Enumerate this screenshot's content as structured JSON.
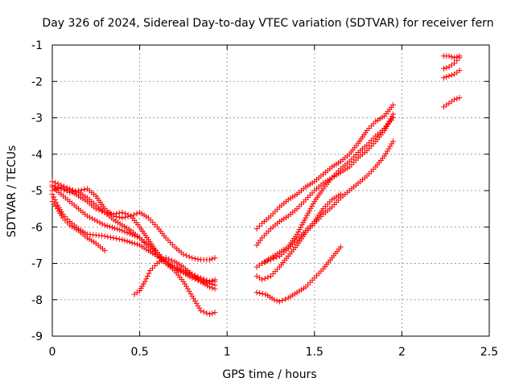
{
  "chart_data": {
    "type": "scatter",
    "title": "Day 326 of 2024, Sidereal Day-to-day VTEC variation (SDTVAR) for receiver fern",
    "xlabel": "GPS time / hours",
    "ylabel": "SDTVAR / TECUs",
    "xlim": [
      0,
      2.5
    ],
    "ylim": [
      -9,
      -1
    ],
    "xticks": [
      0,
      0.5,
      1,
      1.5,
      2,
      2.5
    ],
    "xtick_labels": [
      "0",
      "0.5",
      "1",
      "1.5",
      "2",
      "2.5"
    ],
    "yticks": [
      -9,
      -8,
      -7,
      -6,
      -5,
      -4,
      -3,
      -2,
      -1
    ],
    "ytick_labels": [
      "-9",
      "-8",
      "-7",
      "-6",
      "-5",
      "-4",
      "-3",
      "-2",
      "-1"
    ],
    "grid": true,
    "marker": "+",
    "color": "#ff0000",
    "series": [
      {
        "name": "track-1",
        "points": [
          [
            0.0,
            -4.85
          ],
          [
            0.05,
            -4.95
          ],
          [
            0.1,
            -5.05
          ],
          [
            0.15,
            -5.0
          ],
          [
            0.2,
            -4.95
          ],
          [
            0.25,
            -5.15
          ],
          [
            0.3,
            -5.5
          ],
          [
            0.35,
            -5.7
          ],
          [
            0.4,
            -5.75
          ],
          [
            0.45,
            -5.7
          ],
          [
            0.5,
            -5.6
          ],
          [
            0.55,
            -5.75
          ],
          [
            0.6,
            -6.0
          ],
          [
            0.65,
            -6.3
          ],
          [
            0.7,
            -6.55
          ],
          [
            0.75,
            -6.75
          ],
          [
            0.8,
            -6.85
          ],
          [
            0.85,
            -6.9
          ],
          [
            0.9,
            -6.9
          ],
          [
            0.93,
            -6.85
          ]
        ]
      },
      {
        "name": "track-2",
        "points": [
          [
            0.0,
            -5.0
          ],
          [
            0.05,
            -4.9
          ],
          [
            0.1,
            -5.0
          ],
          [
            0.15,
            -5.15
          ],
          [
            0.2,
            -5.3
          ],
          [
            0.25,
            -5.5
          ],
          [
            0.3,
            -5.6
          ],
          [
            0.35,
            -5.65
          ],
          [
            0.4,
            -5.6
          ],
          [
            0.45,
            -5.7
          ],
          [
            0.5,
            -6.0
          ],
          [
            0.55,
            -6.35
          ],
          [
            0.6,
            -6.7
          ],
          [
            0.65,
            -6.95
          ],
          [
            0.7,
            -7.1
          ],
          [
            0.75,
            -7.2
          ],
          [
            0.8,
            -7.3
          ],
          [
            0.85,
            -7.4
          ],
          [
            0.9,
            -7.5
          ],
          [
            0.93,
            -7.5
          ]
        ]
      },
      {
        "name": "track-3",
        "points": [
          [
            0.0,
            -4.75
          ],
          [
            0.05,
            -4.85
          ],
          [
            0.1,
            -4.95
          ],
          [
            0.15,
            -5.05
          ],
          [
            0.2,
            -5.2
          ],
          [
            0.25,
            -5.4
          ],
          [
            0.3,
            -5.6
          ],
          [
            0.35,
            -5.8
          ],
          [
            0.4,
            -5.95
          ],
          [
            0.45,
            -6.1
          ],
          [
            0.5,
            -6.3
          ],
          [
            0.55,
            -6.55
          ],
          [
            0.6,
            -6.8
          ],
          [
            0.65,
            -7.0
          ],
          [
            0.7,
            -7.15
          ],
          [
            0.75,
            -7.25
          ],
          [
            0.8,
            -7.35
          ],
          [
            0.85,
            -7.45
          ],
          [
            0.9,
            -7.5
          ],
          [
            0.93,
            -7.45
          ]
        ]
      },
      {
        "name": "track-4",
        "points": [
          [
            0.0,
            -5.1
          ],
          [
            0.03,
            -5.4
          ],
          [
            0.06,
            -5.65
          ],
          [
            0.1,
            -5.85
          ],
          [
            0.15,
            -6.05
          ],
          [
            0.2,
            -6.2
          ],
          [
            0.3,
            -6.25
          ],
          [
            0.4,
            -6.35
          ],
          [
            0.5,
            -6.5
          ],
          [
            0.55,
            -6.65
          ],
          [
            0.6,
            -6.8
          ],
          [
            0.65,
            -6.95
          ],
          [
            0.7,
            -7.1
          ],
          [
            0.75,
            -7.25
          ],
          [
            0.8,
            -7.4
          ],
          [
            0.85,
            -7.5
          ],
          [
            0.9,
            -7.55
          ],
          [
            0.93,
            -7.6
          ]
        ]
      },
      {
        "name": "track-5",
        "points": [
          [
            0.0,
            -5.3
          ],
          [
            0.03,
            -5.5
          ],
          [
            0.06,
            -5.75
          ],
          [
            0.1,
            -5.95
          ],
          [
            0.15,
            -6.1
          ],
          [
            0.2,
            -6.3
          ],
          [
            0.25,
            -6.45
          ],
          [
            0.3,
            -6.65
          ]
        ]
      },
      {
        "name": "track-6",
        "points": [
          [
            0.0,
            -4.9
          ],
          [
            0.05,
            -5.1
          ],
          [
            0.1,
            -5.3
          ],
          [
            0.15,
            -5.5
          ],
          [
            0.2,
            -5.7
          ],
          [
            0.3,
            -5.95
          ],
          [
            0.4,
            -6.1
          ],
          [
            0.5,
            -6.3
          ],
          [
            0.55,
            -6.5
          ],
          [
            0.6,
            -6.7
          ],
          [
            0.65,
            -7.0
          ],
          [
            0.7,
            -7.2
          ],
          [
            0.75,
            -7.5
          ],
          [
            0.8,
            -7.9
          ],
          [
            0.85,
            -8.3
          ],
          [
            0.9,
            -8.4
          ],
          [
            0.93,
            -8.35
          ]
        ]
      },
      {
        "name": "track-7",
        "points": [
          [
            0.47,
            -7.85
          ],
          [
            0.5,
            -7.75
          ],
          [
            0.53,
            -7.5
          ],
          [
            0.56,
            -7.2
          ],
          [
            0.6,
            -7.0
          ],
          [
            0.65,
            -6.85
          ],
          [
            0.7,
            -6.95
          ],
          [
            0.75,
            -7.1
          ],
          [
            0.8,
            -7.3
          ],
          [
            0.85,
            -7.5
          ],
          [
            0.9,
            -7.65
          ],
          [
            0.93,
            -7.7
          ]
        ]
      },
      {
        "name": "track-8",
        "points": [
          [
            1.17,
            -6.05
          ],
          [
            1.2,
            -5.9
          ],
          [
            1.25,
            -5.7
          ],
          [
            1.3,
            -5.45
          ],
          [
            1.35,
            -5.25
          ],
          [
            1.4,
            -5.1
          ],
          [
            1.45,
            -4.9
          ],
          [
            1.5,
            -4.75
          ],
          [
            1.55,
            -4.55
          ],
          [
            1.6,
            -4.35
          ],
          [
            1.65,
            -4.2
          ],
          [
            1.7,
            -4.0
          ],
          [
            1.75,
            -3.7
          ],
          [
            1.8,
            -3.35
          ],
          [
            1.85,
            -3.1
          ],
          [
            1.9,
            -2.95
          ],
          [
            1.95,
            -2.65
          ]
        ]
      },
      {
        "name": "track-9",
        "points": [
          [
            1.17,
            -6.5
          ],
          [
            1.2,
            -6.3
          ],
          [
            1.25,
            -6.05
          ],
          [
            1.3,
            -5.85
          ],
          [
            1.35,
            -5.7
          ],
          [
            1.4,
            -5.5
          ],
          [
            1.45,
            -5.25
          ],
          [
            1.5,
            -5.0
          ],
          [
            1.55,
            -4.8
          ],
          [
            1.6,
            -4.65
          ],
          [
            1.65,
            -4.5
          ],
          [
            1.7,
            -4.35
          ],
          [
            1.75,
            -4.1
          ],
          [
            1.8,
            -3.9
          ],
          [
            1.85,
            -3.65
          ],
          [
            1.9,
            -3.35
          ],
          [
            1.95,
            -2.9
          ]
        ]
      },
      {
        "name": "track-10",
        "points": [
          [
            1.17,
            -7.1
          ],
          [
            1.2,
            -7.0
          ],
          [
            1.25,
            -6.85
          ],
          [
            1.3,
            -6.7
          ],
          [
            1.35,
            -6.55
          ],
          [
            1.4,
            -6.2
          ],
          [
            1.45,
            -5.75
          ],
          [
            1.5,
            -5.3
          ],
          [
            1.55,
            -4.95
          ],
          [
            1.6,
            -4.65
          ],
          [
            1.65,
            -4.4
          ],
          [
            1.7,
            -4.2
          ],
          [
            1.75,
            -3.95
          ],
          [
            1.8,
            -3.75
          ],
          [
            1.85,
            -3.5
          ],
          [
            1.9,
            -3.3
          ],
          [
            1.95,
            -3.0
          ]
        ]
      },
      {
        "name": "track-11",
        "points": [
          [
            1.17,
            -7.35
          ],
          [
            1.2,
            -7.45
          ],
          [
            1.25,
            -7.35
          ],
          [
            1.3,
            -7.1
          ],
          [
            1.35,
            -6.8
          ],
          [
            1.4,
            -6.5
          ],
          [
            1.45,
            -6.15
          ],
          [
            1.5,
            -5.9
          ],
          [
            1.55,
            -5.65
          ],
          [
            1.6,
            -5.45
          ],
          [
            1.65,
            -5.2
          ],
          [
            1.7,
            -5.0
          ],
          [
            1.75,
            -4.8
          ],
          [
            1.8,
            -4.6
          ],
          [
            1.85,
            -4.35
          ],
          [
            1.9,
            -4.05
          ],
          [
            1.95,
            -3.65
          ]
        ]
      },
      {
        "name": "track-12",
        "points": [
          [
            1.2,
            -7.0
          ],
          [
            1.25,
            -6.9
          ],
          [
            1.3,
            -6.8
          ],
          [
            1.35,
            -6.6
          ],
          [
            1.4,
            -6.35
          ],
          [
            1.45,
            -6.1
          ],
          [
            1.5,
            -5.85
          ],
          [
            1.55,
            -5.5
          ],
          [
            1.6,
            -5.25
          ],
          [
            1.65,
            -5.1
          ]
        ]
      },
      {
        "name": "track-13",
        "points": [
          [
            1.17,
            -7.8
          ],
          [
            1.22,
            -7.85
          ],
          [
            1.27,
            -8.0
          ],
          [
            1.3,
            -8.05
          ],
          [
            1.35,
            -7.95
          ],
          [
            1.4,
            -7.8
          ],
          [
            1.45,
            -7.65
          ],
          [
            1.5,
            -7.4
          ],
          [
            1.55,
            -7.15
          ],
          [
            1.6,
            -6.85
          ],
          [
            1.65,
            -6.55
          ]
        ]
      },
      {
        "name": "track-14",
        "points": [
          [
            2.24,
            -1.3
          ],
          [
            2.27,
            -1.3
          ],
          [
            2.3,
            -1.35
          ],
          [
            2.33,
            -1.3
          ]
        ]
      },
      {
        "name": "track-15",
        "points": [
          [
            2.24,
            -1.65
          ],
          [
            2.27,
            -1.6
          ],
          [
            2.3,
            -1.5
          ],
          [
            2.33,
            -1.35
          ]
        ]
      },
      {
        "name": "track-16",
        "points": [
          [
            2.24,
            -1.9
          ],
          [
            2.27,
            -1.85
          ],
          [
            2.3,
            -1.8
          ],
          [
            2.33,
            -1.7
          ]
        ]
      },
      {
        "name": "track-17",
        "points": [
          [
            2.24,
            -2.7
          ],
          [
            2.27,
            -2.6
          ],
          [
            2.3,
            -2.5
          ],
          [
            2.33,
            -2.45
          ]
        ]
      }
    ]
  }
}
